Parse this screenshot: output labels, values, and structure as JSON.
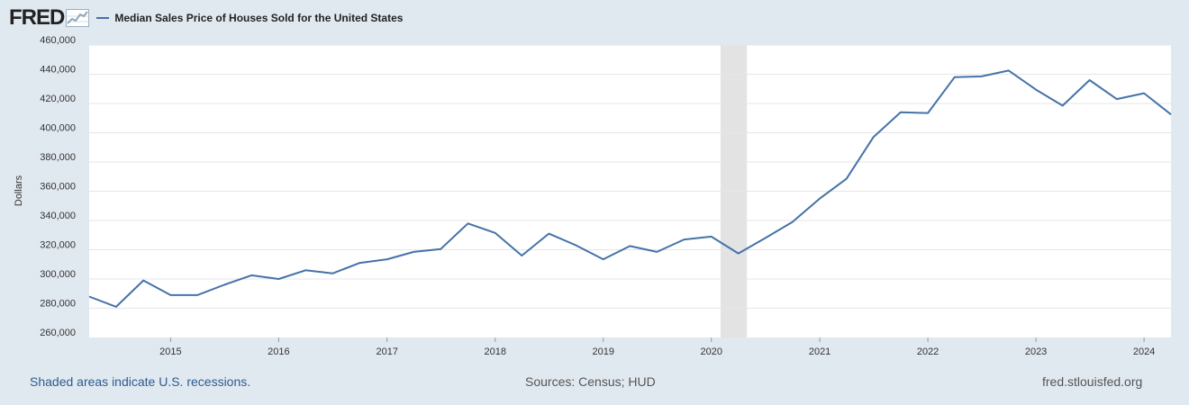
{
  "header": {
    "logo_text": "FRED",
    "legend_label": "Median Sales Price of Houses Sold for the United States"
  },
  "footer": {
    "recession_note": "Shaded areas indicate U.S. recessions.",
    "sources": "Sources: Census; HUD",
    "site": "fred.stlouisfed.org"
  },
  "colors": {
    "series": "#4572a7",
    "background": "#e1e9f0",
    "plot": "#ffffff",
    "recession": "#e3e3e3"
  },
  "chart_data": {
    "type": "line",
    "ylabel": "Dollars",
    "ylim": [
      260000,
      460000
    ],
    "xlim": [
      "2014-04-01",
      "2024-04-01"
    ],
    "y_ticks": [
      "260,000",
      "280,000",
      "300,000",
      "320,000",
      "340,000",
      "360,000",
      "380,000",
      "400,000",
      "420,000",
      "440,000",
      "460,000"
    ],
    "x_ticks": [
      "2015",
      "2016",
      "2017",
      "2018",
      "2019",
      "2020",
      "2021",
      "2022",
      "2023",
      "2024"
    ],
    "grid": true,
    "recessions": [
      {
        "start": "2020-02-01",
        "end": "2020-04-30"
      }
    ],
    "series": [
      {
        "name": "Median Sales Price of Houses Sold for the United States",
        "x": [
          "2014-04-01",
          "2014-07-01",
          "2014-10-01",
          "2015-01-01",
          "2015-04-01",
          "2015-07-01",
          "2015-10-01",
          "2016-01-01",
          "2016-04-01",
          "2016-07-01",
          "2016-10-01",
          "2017-01-01",
          "2017-04-01",
          "2017-07-01",
          "2017-10-01",
          "2018-01-01",
          "2018-04-01",
          "2018-07-01",
          "2018-10-01",
          "2019-01-01",
          "2019-04-01",
          "2019-07-01",
          "2019-10-01",
          "2020-01-01",
          "2020-04-01",
          "2020-07-01",
          "2020-10-01",
          "2021-01-01",
          "2021-04-01",
          "2021-07-01",
          "2021-10-01",
          "2022-01-01",
          "2022-04-01",
          "2022-07-01",
          "2022-10-01",
          "2023-01-01",
          "2023-04-01",
          "2023-07-01",
          "2023-10-01",
          "2024-01-01",
          "2024-04-01"
        ],
        "values": [
          288000,
          281000,
          299000,
          289000,
          289000,
          296000,
          302500,
          300000,
          306000,
          303800,
          311000,
          313500,
          318500,
          320500,
          338000,
          331500,
          316000,
          331000,
          323000,
          313500,
          322500,
          318500,
          327000,
          329000,
          317500,
          328000,
          339000,
          355000,
          368500,
          397000,
          414000,
          413500,
          438000,
          438500,
          442500,
          429500,
          418500,
          436000,
          423000,
          427000,
          412500
        ]
      }
    ]
  }
}
